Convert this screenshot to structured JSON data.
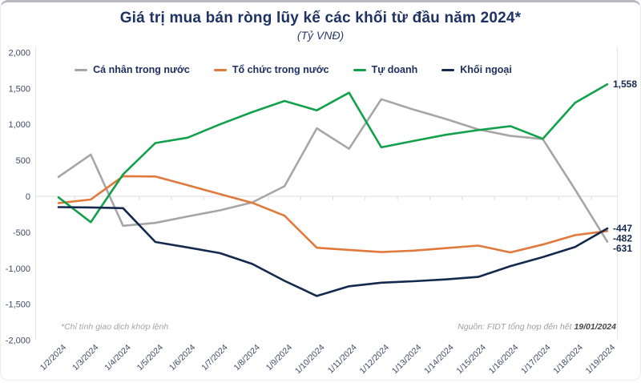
{
  "card": {
    "title": "Giá trị mua bán ròng lũy kế các khối từ đầu năm 2024*",
    "subtitle": "(Tỷ VNĐ)",
    "footnote": "*Chỉ tính giao dịch khớp lệnh",
    "source_prefix": "Nguồn: FIDT tổng hợp đến hết ",
    "source_date": "19/01/2024"
  },
  "colors": {
    "title_navy": "#1e3264",
    "axis_text": "#3d4a66",
    "grid_line": "#dcdcdc",
    "end_label_text": "#14294e"
  },
  "chart_data": {
    "type": "line",
    "title": "Giá trị mua bán ròng lũy kế các khối từ đầu năm 2024*",
    "subtitle": "(Tỷ VNĐ)",
    "unit": "Tỷ VNĐ",
    "legend_position": "top",
    "grid": "zero-line-only",
    "ylim": [
      -2000,
      2000
    ],
    "y_ticks": [
      {
        "value": 2000,
        "label": "2,000"
      },
      {
        "value": 1500,
        "label": "1,500"
      },
      {
        "value": 1000,
        "label": "1,000"
      },
      {
        "value": 500,
        "label": "500"
      },
      {
        "value": 0,
        "label": "0"
      },
      {
        "value": -500,
        "label": "-500"
      },
      {
        "value": -1000,
        "label": "-1,000"
      },
      {
        "value": -1500,
        "label": "-1,500"
      },
      {
        "value": -2000,
        "label": "-2,000"
      }
    ],
    "x": [
      "1/2/2024",
      "1/3/2024",
      "1/4/2024",
      "1/5/2024",
      "1/6/2024",
      "1/7/2024",
      "1/8/2024",
      "1/9/2024",
      "1/10/2024",
      "1/11/2024",
      "1/12/2024",
      "1/13/2024",
      "1/14/2024",
      "1/15/2024",
      "1/16/2024",
      "1/17/2024",
      "1/18/2024",
      "1/19/2024"
    ],
    "series": [
      {
        "key": "ca-nhan-trong-nuoc",
        "name": "Cá nhân trong nước",
        "color": "#a6a6a6",
        "end_label": "-631",
        "values": [
          270,
          580,
          -410,
          -370,
          -280,
          -195,
          -85,
          140,
          945,
          660,
          1350,
          1205,
          1075,
          930,
          840,
          795,
          95,
          -631
        ]
      },
      {
        "key": "to-chuc-trong-nuoc",
        "name": "Tổ chức trong nước",
        "color": "#e0793c",
        "end_label": "-482",
        "values": [
          -95,
          -45,
          280,
          275,
          155,
          30,
          -90,
          -270,
          -715,
          -745,
          -775,
          -755,
          -720,
          -685,
          -780,
          -670,
          -540,
          -482
        ]
      },
      {
        "key": "tu-doanh",
        "name": "Tự doanh",
        "color": "#12a14b",
        "end_label": "1,558",
        "values": [
          -15,
          -360,
          305,
          740,
          815,
          1000,
          1170,
          1325,
          1195,
          1440,
          680,
          770,
          855,
          920,
          975,
          800,
          1300,
          1558
        ]
      },
      {
        "key": "khoi-ngoai",
        "name": "Khối ngoại",
        "color": "#14294e",
        "end_label": "-447",
        "values": [
          -150,
          -155,
          -165,
          -635,
          -710,
          -790,
          -940,
          -1175,
          -1385,
          -1250,
          -1200,
          -1180,
          -1155,
          -1120,
          -970,
          -845,
          -705,
          -447
        ]
      }
    ]
  }
}
